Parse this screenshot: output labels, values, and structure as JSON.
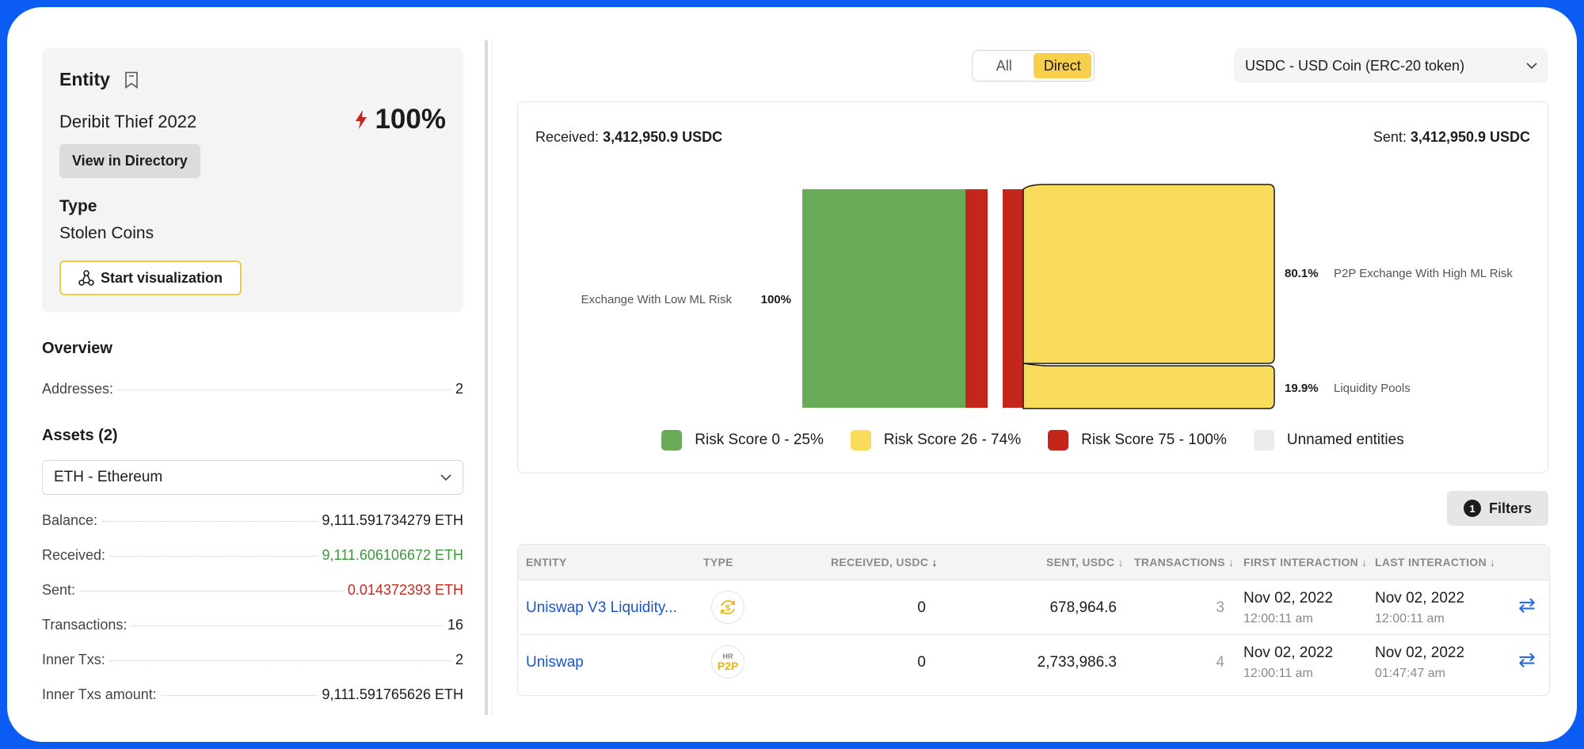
{
  "entity": {
    "title": "Entity",
    "name": "Deribit Thief 2022",
    "risk_score": "100%",
    "view_directory_label": "View in Directory",
    "type_label": "Type",
    "type_value": "Stolen Coins",
    "visualization_label": "Start visualization"
  },
  "overview": {
    "title": "Overview",
    "addresses_label": "Addresses:",
    "addresses_value": "2"
  },
  "assets": {
    "title": "Assets (2)",
    "selected": "ETH - Ethereum",
    "rows": [
      {
        "label": "Balance:",
        "value": "9,111.591734279 ETH"
      },
      {
        "label": "Received:",
        "value": "9,111.606106672 ETH"
      },
      {
        "label": "Sent:",
        "value": "0.014372393 ETH"
      },
      {
        "label": "Transactions:",
        "value": "16"
      },
      {
        "label": "Inner Txs:",
        "value": "2"
      },
      {
        "label": "Inner Txs amount:",
        "value": "9,111.591765626 ETH"
      }
    ]
  },
  "toggle": {
    "all": "All",
    "direct": "Direct",
    "active": "Direct"
  },
  "asset_select": "USDC - USD Coin (ERC-20 token)",
  "flow": {
    "received_label": "Received:",
    "received_value": "3,412,950.9 USDC",
    "sent_label": "Sent:",
    "sent_value": "3,412,950.9 USDC",
    "in_label": "Exchange With Low ML Risk",
    "in_pct": "100%",
    "out": [
      {
        "label": "P2P Exchange With High ML Risk",
        "pct": "80.1%"
      },
      {
        "label": "Liquidity Pools",
        "pct": "19.9%"
      }
    ],
    "legend": [
      {
        "label": "Risk Score 0 - 25%",
        "color": "#6aab5a"
      },
      {
        "label": "Risk Score 26 - 74%",
        "color": "#f9dc5c"
      },
      {
        "label": "Risk Score 75 - 100%",
        "color": "#c4261c"
      },
      {
        "label": "Unnamed entities",
        "color": "#ebebeb"
      }
    ]
  },
  "filters": {
    "count": "1",
    "label": "Filters"
  },
  "table": {
    "headers": [
      "ENTITY",
      "TYPE",
      "RECEIVED, USDC",
      "SENT, USDC",
      "TRANSACTIONS",
      "FIRST INTERACTION",
      "LAST INTERACTION"
    ],
    "rows": [
      {
        "entity": "Uniswap V3 Liquidity...",
        "type_icon": "dollar-swap-icon",
        "received": "0",
        "sent": "678,964.6",
        "transactions": "3",
        "first_date": "Nov 02, 2022",
        "first_time": "12:00:11 am",
        "last_date": "Nov 02, 2022",
        "last_time": "12:00:11 am"
      },
      {
        "entity": "Uniswap",
        "type_icon": "hr-p2p-icon",
        "type_top": "HR",
        "type_bottom": "P2P",
        "received": "0",
        "sent": "2,733,986.3",
        "transactions": "4",
        "first_date": "Nov 02, 2022",
        "first_time": "12:00:11 am",
        "last_date": "Nov 02, 2022",
        "last_time": "01:47:47 am"
      }
    ]
  }
}
